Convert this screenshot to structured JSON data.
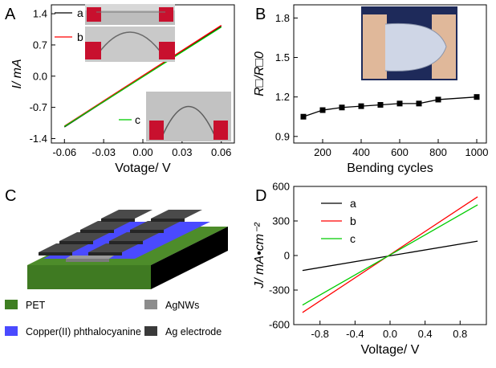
{
  "panel_labels": {
    "A": "A",
    "B": "B",
    "C": "C",
    "D": "D"
  },
  "chart_data": [
    {
      "id": "A",
      "type": "line",
      "xlabel": "Votage/ V",
      "ylabel": "I/ mA",
      "xlim": [
        -0.07,
        0.07
      ],
      "ylim": [
        -1.5,
        1.6
      ],
      "xticks": [
        -0.06,
        -0.03,
        0.0,
        0.03,
        0.06
      ],
      "xtick_labels": [
        "-0.06",
        "-0.03",
        "0.00",
        "0.03",
        "0.06"
      ],
      "yticks": [
        -1.4,
        -0.7,
        0.0,
        0.7,
        1.4
      ],
      "ytick_labels": [
        "-1.4",
        "-0.7",
        "0.0",
        "0.7",
        "1.4"
      ],
      "legend_position": "top-left",
      "series": [
        {
          "name": "a",
          "color": "#000000",
          "x": [
            -0.06,
            0.06
          ],
          "y": [
            -1.14,
            1.12
          ]
        },
        {
          "name": "b",
          "color": "#ff0000",
          "x": [
            -0.06,
            0.06
          ],
          "y": [
            -1.12,
            1.14
          ]
        },
        {
          "name": "c",
          "color": "#00cc00",
          "x": [
            -0.06,
            0.06
          ],
          "y": [
            -1.13,
            1.1
          ]
        }
      ]
    },
    {
      "id": "B",
      "type": "line",
      "xlabel": "Bending cycles",
      "ylabel": "R□/R□0",
      "xlim": [
        50,
        1050
      ],
      "ylim": [
        0.85,
        1.9
      ],
      "xticks": [
        200,
        400,
        600,
        800,
        1000
      ],
      "xtick_labels": [
        "200",
        "400",
        "600",
        "800",
        "1000"
      ],
      "yticks": [
        0.9,
        1.2,
        1.5,
        1.8
      ],
      "ytick_labels": [
        "0.9",
        "1.2",
        "1.5",
        "1.8"
      ],
      "series": [
        {
          "color": "#000000",
          "x": [
            100,
            200,
            300,
            400,
            500,
            600,
            700,
            800,
            1000
          ],
          "y": [
            1.05,
            1.1,
            1.12,
            1.13,
            1.14,
            1.15,
            1.15,
            1.18,
            1.2
          ]
        }
      ]
    },
    {
      "id": "D",
      "type": "line",
      "xlabel": "Voltage/ V",
      "ylabel": "J/ mA•cm⁻²",
      "xlim": [
        -1.1,
        1.1
      ],
      "ylim": [
        -600,
        600
      ],
      "xticks": [
        -0.8,
        -0.4,
        0.0,
        0.4,
        0.8
      ],
      "xtick_labels": [
        "-0.8",
        "-0.4",
        "0.0",
        "0.4",
        "0.8"
      ],
      "yticks": [
        -600,
        -300,
        0,
        300,
        600
      ],
      "ytick_labels": [
        "-600",
        "-300",
        "0",
        "300",
        "600"
      ],
      "legend_position": "top-left",
      "series": [
        {
          "name": "a",
          "color": "#000000",
          "x": [
            -1.0,
            1.0
          ],
          "y": [
            -130,
            125
          ]
        },
        {
          "name": "b",
          "color": "#ff0000",
          "x": [
            -1.0,
            1.0
          ],
          "y": [
            -495,
            510
          ]
        },
        {
          "name": "c",
          "color": "#00cc00",
          "x": [
            -1.0,
            1.0
          ],
          "y": [
            -430,
            440
          ]
        }
      ]
    }
  ],
  "device_legend": [
    {
      "label": "PET",
      "color": "#3f7f22"
    },
    {
      "label": "AgNWs",
      "color": "#8c8c8c"
    },
    {
      "label": "Copper(II) phthalocyanine",
      "color": "#4a4aff"
    },
    {
      "label": "Ag electrode",
      "color": "#3a3a3a"
    }
  ]
}
